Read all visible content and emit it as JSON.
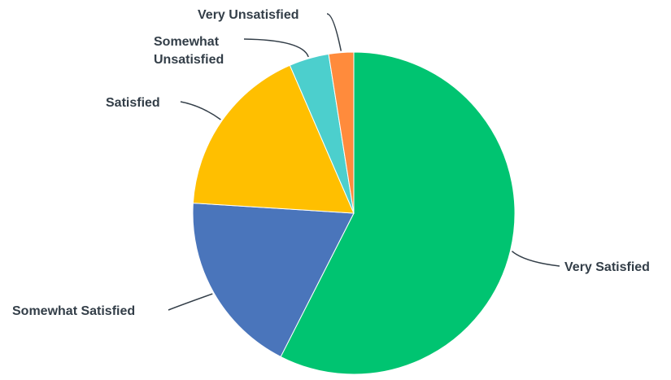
{
  "chart_data": {
    "type": "pie",
    "title": "",
    "categories": [
      "Very Satisfied",
      "Somewhat Satisfied",
      "Satisfied",
      "Somewhat Unsatisfied",
      "Very Unsatisfied"
    ],
    "values": [
      57.5,
      18.5,
      17.5,
      4.0,
      2.5
    ],
    "unit": "%",
    "start_angle": "top (12 o'clock), clockwise",
    "legend": "none (labels placed beside slices with leader lines)",
    "colors": [
      "#00c471",
      "#4a75bb",
      "#ffbf00",
      "#4ccfcd",
      "#ff8b3c"
    ],
    "label_lines": [
      [
        "Very Satisfied"
      ],
      [
        "Somewhat Satisfied"
      ],
      [
        "Satisfied"
      ],
      [
        "Somewhat",
        "Unsatisfied"
      ],
      [
        "Very Unsatisfied"
      ]
    ]
  },
  "style": {
    "label_color": "#333e48",
    "background": "#ffffff"
  }
}
